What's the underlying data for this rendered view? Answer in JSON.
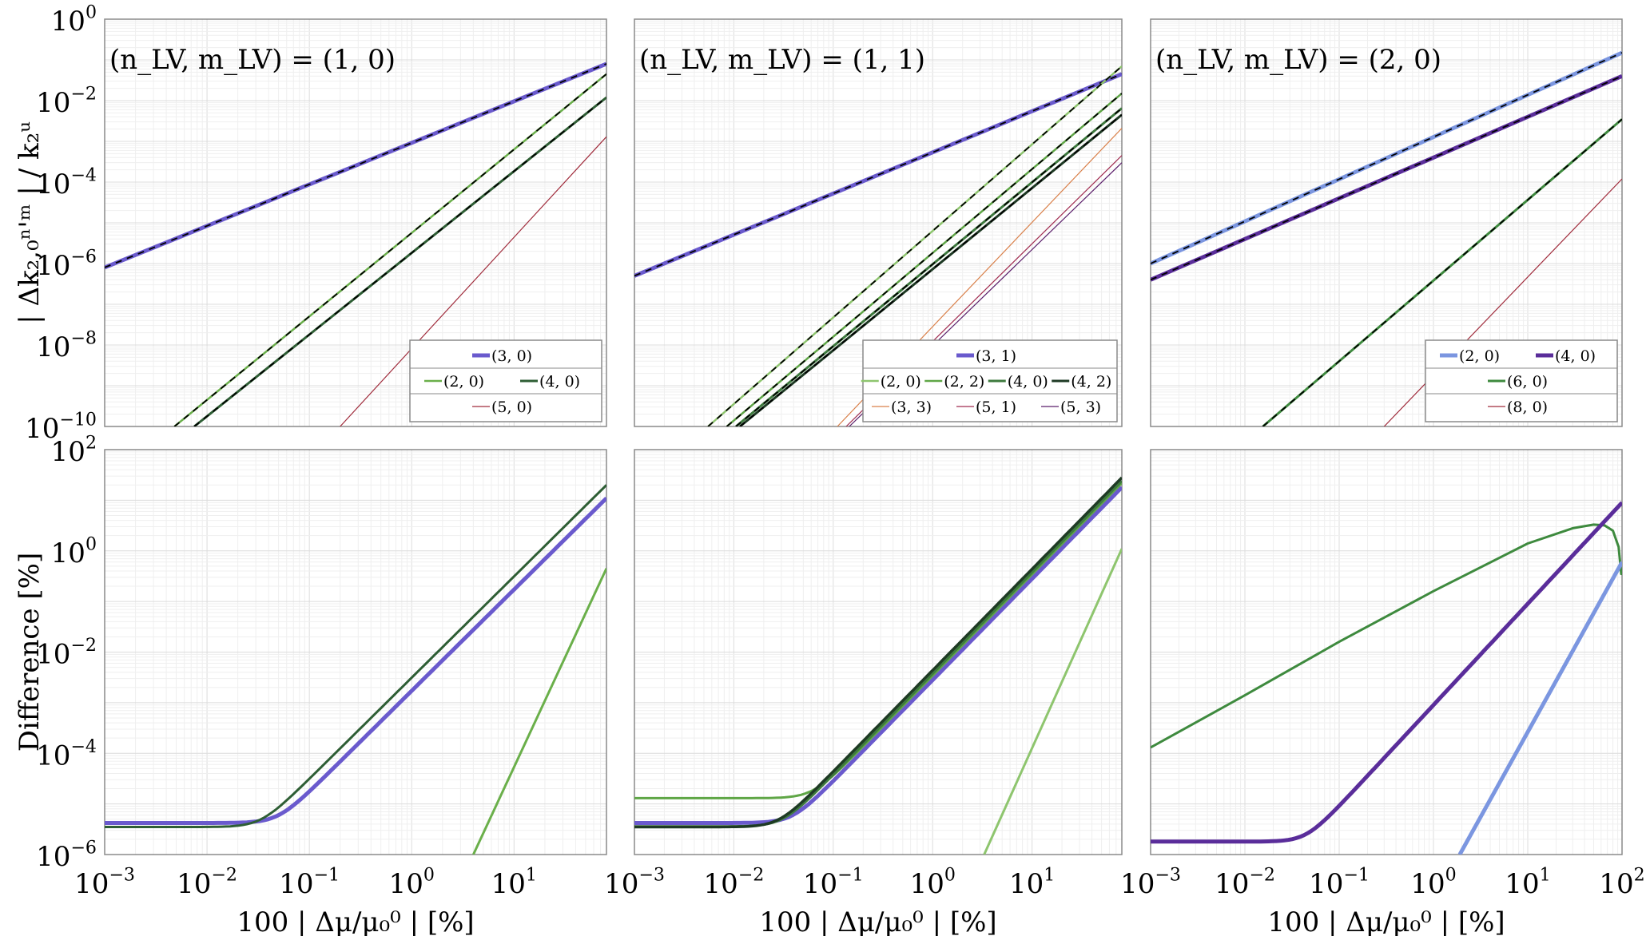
{
  "figure": {
    "shared_top_ylabel": "| Δk₂,₀ⁿ'ᵐ | / k₂ᵘ",
    "shared_bottom_ylabel": "Difference [%]",
    "shared_xlabel": "100 | Δμ/μ₀⁰ | [%]"
  },
  "chart_data": [
    {
      "id": "top-left",
      "type": "line",
      "title": "(n_LV, m_LV) = (1, 0)",
      "xscale": "log",
      "yscale": "log",
      "xlim": [
        0.001,
        80
      ],
      "ylim": [
        1e-10,
        1
      ],
      "xticks": [
        0.001,
        0.01,
        0.1,
        1,
        10
      ],
      "xtick_labels": [
        "",
        "",
        "",
        "",
        ""
      ],
      "yticks": [
        1,
        0.01,
        0.0001,
        1e-06,
        1e-08,
        1e-10
      ],
      "ytick_labels": [
        "10^0",
        "10^-2",
        "10^-4",
        "10^-6",
        "10^-8",
        "10^-10"
      ],
      "ylabel": "| Δk₂,₀ⁿ'ᵐ | / k₂ᵘ",
      "xlabel": "",
      "grid": true,
      "legend_position": "bottom-right",
      "legend_rows": [
        [
          "(3, 0)"
        ],
        [
          "(2, 0)",
          "(4, 0)"
        ],
        [
          "(5, 0)"
        ]
      ],
      "series": [
        {
          "name": "(3, 0)",
          "color": "#6a5acd",
          "width": 5,
          "dashed_overlay": true,
          "x": [
            0.001,
            80
          ],
          "y": [
            8e-07,
            0.08
          ]
        },
        {
          "name": "(2, 0)",
          "color": "#6aaf4a",
          "width": 2.5,
          "dashed_overlay": true,
          "x": [
            0.0048,
            80
          ],
          "y": [
            1e-10,
            0.045
          ]
        },
        {
          "name": "(4, 0)",
          "color": "#2e5e34",
          "width": 3,
          "dashed_overlay": true,
          "x": [
            0.0075,
            80
          ],
          "y": [
            1e-10,
            0.012
          ]
        },
        {
          "name": "(5, 0)",
          "color": "#a02c3c",
          "width": 1.2,
          "dashed_overlay": false,
          "x": [
            0.2,
            80
          ],
          "y": [
            1e-10,
            0.0013
          ]
        }
      ]
    },
    {
      "id": "top-middle",
      "type": "line",
      "title": "(n_LV, m_LV) = (1, 1)",
      "xscale": "log",
      "yscale": "log",
      "xlim": [
        0.001,
        80
      ],
      "ylim": [
        1e-10,
        1
      ],
      "xticks": [
        0.001,
        0.01,
        0.1,
        1,
        10
      ],
      "xtick_labels": [
        "",
        "",
        "",
        "",
        ""
      ],
      "yticks": [
        1,
        0.01,
        0.0001,
        1e-06,
        1e-08,
        1e-10
      ],
      "ytick_labels": [
        "",
        "",
        "",
        "",
        "",
        ""
      ],
      "xlabel": "",
      "ylabel": "",
      "grid": true,
      "legend_position": "bottom-right",
      "legend_rows": [
        [
          "(3, 1)"
        ],
        [
          "(2, 0)",
          "(2, 2)",
          "(4, 0)",
          "(4, 2)"
        ],
        [
          "(3, 3)",
          "(5, 1)",
          "(5, 3)"
        ]
      ],
      "series": [
        {
          "name": "(3, 1)",
          "color": "#6a5acd",
          "width": 5,
          "dashed_overlay": true,
          "x": [
            0.001,
            80
          ],
          "y": [
            5e-07,
            0.045
          ]
        },
        {
          "name": "(2, 0)",
          "color": "#8ec56e",
          "width": 2.5,
          "dashed_overlay": true,
          "x": [
            0.0055,
            80
          ],
          "y": [
            1e-10,
            0.07
          ]
        },
        {
          "name": "(2, 2)",
          "color": "#5fa646",
          "width": 2.5,
          "dashed_overlay": true,
          "x": [
            0.0085,
            80
          ],
          "y": [
            1e-10,
            0.015
          ]
        },
        {
          "name": "(4, 0)",
          "color": "#3e7a3e",
          "width": 3,
          "dashed_overlay": true,
          "x": [
            0.0105,
            80
          ],
          "y": [
            1e-10,
            0.0065
          ]
        },
        {
          "name": "(4, 2)",
          "color": "#1e3a24",
          "width": 3,
          "dashed_overlay": true,
          "x": [
            0.0115,
            80
          ],
          "y": [
            1e-10,
            0.0045
          ]
        },
        {
          "name": "(3, 3)",
          "color": "#d9804a",
          "width": 1.2,
          "dashed_overlay": false,
          "x": [
            0.11,
            80
          ],
          "y": [
            1e-10,
            0.0021
          ]
        },
        {
          "name": "(5, 1)",
          "color": "#a02c50",
          "width": 1.2,
          "dashed_overlay": false,
          "x": [
            0.135,
            80
          ],
          "y": [
            1e-10,
            0.00045
          ]
        },
        {
          "name": "(5, 3)",
          "color": "#5a1e6a",
          "width": 1.2,
          "dashed_overlay": false,
          "x": [
            0.145,
            80
          ],
          "y": [
            1e-10,
            0.0003
          ]
        }
      ]
    },
    {
      "id": "top-right",
      "type": "line",
      "title": "(n_LV, m_LV) = (2, 0)",
      "xscale": "log",
      "yscale": "log",
      "xlim": [
        0.001,
        100
      ],
      "ylim": [
        1e-10,
        1
      ],
      "xticks": [
        0.001,
        0.01,
        0.1,
        1,
        10,
        100
      ],
      "xtick_labels": [
        "",
        "",
        "",
        "",
        "",
        ""
      ],
      "yticks": [
        1,
        0.01,
        0.0001,
        1e-06,
        1e-08,
        1e-10
      ],
      "ytick_labels": [
        "",
        "",
        "",
        "",
        "",
        ""
      ],
      "xlabel": "",
      "ylabel": "",
      "grid": true,
      "legend_position": "bottom-right",
      "legend_rows": [
        [
          "(2, 0)",
          "(4, 0)"
        ],
        [
          "(6, 0)"
        ],
        [
          "(8, 0)"
        ]
      ],
      "series": [
        {
          "name": "(2, 0)",
          "color": "#7b96e0",
          "width": 5,
          "dashed_overlay": true,
          "x": [
            0.001,
            100
          ],
          "y": [
            1e-06,
            0.15
          ]
        },
        {
          "name": "(4, 0)",
          "color": "#5a2d9a",
          "width": 5,
          "dashed_overlay": true,
          "x": [
            0.001,
            100
          ],
          "y": [
            4e-07,
            0.04
          ]
        },
        {
          "name": "(6, 0)",
          "color": "#3e8a3e",
          "width": 3,
          "dashed_overlay": true,
          "x": [
            0.0155,
            100
          ],
          "y": [
            1e-10,
            0.0035
          ]
        },
        {
          "name": "(8, 0)",
          "color": "#a02c3c",
          "width": 1.2,
          "dashed_overlay": false,
          "x": [
            0.3,
            100
          ],
          "y": [
            1e-10,
            0.00012
          ]
        }
      ]
    },
    {
      "id": "bottom-left",
      "type": "line",
      "title": "",
      "xscale": "log",
      "yscale": "log",
      "xlim": [
        0.001,
        80
      ],
      "ylim": [
        1e-06,
        100
      ],
      "xticks": [
        0.001,
        0.01,
        0.1,
        1,
        10
      ],
      "xtick_labels": [
        "10^-3",
        "10^-2",
        "10^-1",
        "10^0",
        "10^1"
      ],
      "yticks": [
        100,
        1,
        0.01,
        0.0001,
        1e-06
      ],
      "ytick_labels": [
        "10^2",
        "10^0",
        "10^-2",
        "10^-4",
        "10^-6"
      ],
      "xlabel": "100 | Δμ/μ₀⁰ | [%]",
      "ylabel": "Difference [%]",
      "grid": true,
      "series": [
        {
          "name": "(3, 0)",
          "color": "#6a5acd",
          "width": 5,
          "plateau": 4.2e-06,
          "knee": 0.05,
          "slope": 2,
          "x_end": 80,
          "y_end": 11
        },
        {
          "name": "(4, 0)",
          "color": "#2e5e34",
          "width": 3,
          "plateau": 3.5e-06,
          "knee": 0.04,
          "slope": 2,
          "x_end": 80,
          "y_end": 20
        },
        {
          "name": "(2, 0)",
          "color": "#6aaf4a",
          "width": 3,
          "x": [
            4,
            80
          ],
          "y": [
            1e-06,
            0.45
          ]
        }
      ]
    },
    {
      "id": "bottom-middle",
      "type": "line",
      "title": "",
      "xscale": "log",
      "yscale": "log",
      "xlim": [
        0.001,
        80
      ],
      "ylim": [
        1e-06,
        100
      ],
      "xticks": [
        0.001,
        0.01,
        0.1,
        1,
        10
      ],
      "xtick_labels": [
        "10^-3",
        "10^-2",
        "10^-1",
        "10^0",
        "10^1"
      ],
      "yticks": [
        100,
        1,
        0.01,
        0.0001,
        1e-06
      ],
      "ytick_labels": [
        "",
        "",
        "",
        "",
        ""
      ],
      "xlabel": "100 | Δμ/μ₀⁰ | [%]",
      "ylabel": "",
      "grid": true,
      "series": [
        {
          "name": "(3, 1)",
          "color": "#6a5acd",
          "width": 5,
          "plateau": 4.2e-06,
          "knee": 0.055,
          "slope": 2,
          "x_end": 80,
          "y_end": 18
        },
        {
          "name": "(2, 2)",
          "color": "#5fa646",
          "width": 3,
          "plateau": 1.3e-05,
          "knee": 0.1,
          "slope": 2,
          "x_end": 80,
          "y_end": 22
        },
        {
          "name": "(4, 0)",
          "color": "#3e7a3e",
          "width": 3,
          "plateau": 3.6e-06,
          "knee": 0.045,
          "slope": 2,
          "x_end": 80,
          "y_end": 24
        },
        {
          "name": "(4, 2)",
          "color": "#1e3a24",
          "width": 3.5,
          "plateau": 3.5e-06,
          "knee": 0.045,
          "slope": 2,
          "x_end": 80,
          "y_end": 28
        },
        {
          "name": "(2, 0)",
          "color": "#8ec56e",
          "width": 3,
          "x": [
            3.3,
            80
          ],
          "y": [
            1e-06,
            1.1
          ]
        }
      ]
    },
    {
      "id": "bottom-right",
      "type": "line",
      "title": "",
      "xscale": "log",
      "yscale": "log",
      "xlim": [
        0.001,
        100
      ],
      "ylim": [
        1e-06,
        100
      ],
      "xticks": [
        0.001,
        0.01,
        0.1,
        1,
        10,
        100
      ],
      "xtick_labels": [
        "10^-3",
        "10^-2",
        "10^-1",
        "10^0",
        "10^1",
        "10^2"
      ],
      "yticks": [
        100,
        1,
        0.01,
        0.0001,
        1e-06
      ],
      "ytick_labels": [
        "",
        "",
        "",
        "",
        ""
      ],
      "xlabel": "100 | Δμ/μ₀⁰ | [%]",
      "ylabel": "",
      "grid": true,
      "series": [
        {
          "name": "(6, 0)",
          "color": "#3e8a3e",
          "width": 3,
          "x": [
            0.001,
            0.01,
            0.1,
            1,
            10,
            30,
            50,
            65,
            80,
            92,
            98,
            100
          ],
          "y": [
            0.00013,
            0.0014,
            0.016,
            0.16,
            1.4,
            2.8,
            3.3,
            3.2,
            2.5,
            1.2,
            0.35,
            0.4
          ]
        },
        {
          "name": "(4, 0)",
          "color": "#5a2d9a",
          "width": 5,
          "plateau": 1.8e-06,
          "knee": 0.03,
          "slope": 2,
          "x_end": 100,
          "y_end": 9
        },
        {
          "name": "(2, 0)",
          "color": "#7b96e0",
          "width": 5,
          "x": [
            1.9,
            100
          ],
          "y": [
            1e-06,
            0.6
          ]
        }
      ]
    }
  ]
}
